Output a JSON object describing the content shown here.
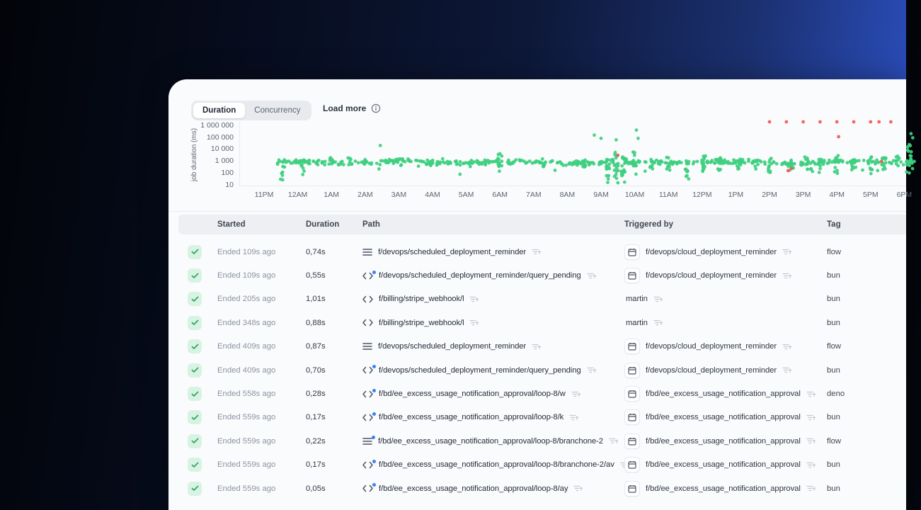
{
  "panel": {
    "tabs": [
      {
        "label": "Duration",
        "active": true
      },
      {
        "label": "Concurrency",
        "active": false
      }
    ],
    "load_more": {
      "label": "Load more"
    },
    "chart_data": {
      "type": "scatter",
      "title": "",
      "xlabel": "",
      "ylabel": "job duration (ms)",
      "y_scale": "log",
      "grid": false,
      "legend": "none",
      "y_ticks": [
        {
          "label": "1 000 000",
          "value": 6
        },
        {
          "label": "100 000",
          "value": 5
        },
        {
          "label": "10 000",
          "value": 4
        },
        {
          "label": "1 000",
          "value": 3
        },
        {
          "label": "100",
          "value": 2
        },
        {
          "label": "10",
          "value": 1
        }
      ],
      "x_ticks": [
        "11PM",
        "12AM",
        "1AM",
        "2AM",
        "3AM",
        "4AM",
        "5AM",
        "6AM",
        "7AM",
        "8AM",
        "9AM",
        "10AM",
        "11AM",
        "12PM",
        "1PM",
        "2PM",
        "3PM",
        "4PM",
        "5PM",
        "6PM"
      ],
      "x_unit": "hours since 11PM",
      "colors": {
        "ok": "#3ecf80",
        "error": "#f15b55"
      },
      "band": [
        {
          "t0": 0.4,
          "t1": 19.3,
          "n": 500,
          "log_mean": 2.88,
          "log_sd": 0.15
        }
      ],
      "spikes": [
        {
          "t": 0.55,
          "n": 5,
          "log_min": 1.3,
          "log_max": 2.9
        },
        {
          "t": 1.15,
          "n": 4,
          "log_min": 1.8,
          "log_max": 2.95
        },
        {
          "t": 2.0,
          "n": 8,
          "log_min": 2.5,
          "log_max": 3.3
        },
        {
          "t": 2.55,
          "n": 6,
          "log_min": 2.6,
          "log_max": 3.25
        },
        {
          "t": 3.0,
          "n": 6,
          "log_min": 2.5,
          "log_max": 3.2
        },
        {
          "t": 4.1,
          "n": 6,
          "log_min": 2.6,
          "log_max": 3.2
        },
        {
          "t": 5.0,
          "n": 5,
          "log_min": 2.6,
          "log_max": 3.1
        },
        {
          "t": 6.1,
          "n": 5,
          "log_min": 2.5,
          "log_max": 3.1
        },
        {
          "t": 7.0,
          "n": 11,
          "log_min": 2.0,
          "log_max": 3.6
        },
        {
          "t": 8.3,
          "n": 6,
          "log_min": 2.5,
          "log_max": 3.2
        },
        {
          "t": 9.5,
          "n": 7,
          "log_min": 2.3,
          "log_max": 3.15
        },
        {
          "t": 10.2,
          "n": 14,
          "log_min": 1.2,
          "log_max": 3.3
        },
        {
          "t": 10.45,
          "n": 16,
          "log_min": 1.2,
          "log_max": 3.8
        },
        {
          "t": 10.65,
          "n": 14,
          "log_min": 1.3,
          "log_max": 3.4
        },
        {
          "t": 11.0,
          "n": 10,
          "log_min": 1.7,
          "log_max": 3.9
        },
        {
          "t": 11.5,
          "n": 6,
          "log_min": 2.3,
          "log_max": 3.2
        },
        {
          "t": 12.0,
          "n": 8,
          "log_min": 2.2,
          "log_max": 3.3
        },
        {
          "t": 12.55,
          "n": 10,
          "log_min": 1.5,
          "log_max": 3.05
        },
        {
          "t": 13.05,
          "n": 10,
          "log_min": 2.0,
          "log_max": 3.5
        },
        {
          "t": 13.5,
          "n": 8,
          "log_min": 2.2,
          "log_max": 3.4
        },
        {
          "t": 14.1,
          "n": 8,
          "log_min": 2.3,
          "log_max": 3.5
        },
        {
          "t": 14.6,
          "n": 6,
          "log_min": 2.2,
          "log_max": 3.2
        },
        {
          "t": 15.0,
          "n": 10,
          "log_min": 2.0,
          "log_max": 3.4
        },
        {
          "t": 15.6,
          "n": 8,
          "log_min": 1.9,
          "log_max": 3.2
        },
        {
          "t": 16.1,
          "n": 8,
          "log_min": 2.2,
          "log_max": 3.4
        },
        {
          "t": 16.5,
          "n": 8,
          "log_min": 1.8,
          "log_max": 3.3
        },
        {
          "t": 17.0,
          "n": 10,
          "log_min": 1.9,
          "log_max": 3.5
        },
        {
          "t": 17.5,
          "n": 8,
          "log_min": 2.0,
          "log_max": 3.3
        },
        {
          "t": 18.0,
          "n": 10,
          "log_min": 1.8,
          "log_max": 3.5
        },
        {
          "t": 18.4,
          "n": 8,
          "log_min": 2.0,
          "log_max": 3.3
        },
        {
          "t": 18.8,
          "n": 8,
          "log_min": 1.6,
          "log_max": 3.4
        },
        {
          "t": 19.15,
          "n": 12,
          "log_min": 2.2,
          "log_max": 4.6
        }
      ],
      "outliers_ok": [
        [
          0.52,
          90
        ],
        [
          0.55,
          25
        ],
        [
          1.15,
          70
        ],
        [
          3.45,
          20000
        ],
        [
          5.3,
          1500
        ],
        [
          7.0,
          4000
        ],
        [
          9.8,
          150000
        ],
        [
          10.0,
          80000
        ],
        [
          10.2,
          15
        ],
        [
          10.45,
          60000
        ],
        [
          10.5,
          14
        ],
        [
          10.7,
          16
        ],
        [
          11.05,
          400000
        ],
        [
          11.1,
          80000
        ],
        [
          12.6,
          30
        ],
        [
          13.1,
          2600
        ],
        [
          19.2,
          200000
        ],
        [
          19.25,
          90000
        ]
      ],
      "points_error": [
        [
          10.5,
          3000
        ],
        [
          15.0,
          2000000
        ],
        [
          15.5,
          2000000
        ],
        [
          15.55,
          150
        ],
        [
          15.65,
          220
        ],
        [
          16.0,
          2000000
        ],
        [
          16.5,
          2000000
        ],
        [
          17.0,
          2000000
        ],
        [
          17.05,
          110000
        ],
        [
          17.5,
          2000000
        ],
        [
          18.0,
          2000000
        ],
        [
          18.25,
          2000000
        ],
        [
          18.32,
          900
        ],
        [
          18.6,
          2000000
        ]
      ]
    },
    "table": {
      "columns": [
        "Started",
        "Duration",
        "Path",
        "Triggered by",
        "Tag"
      ],
      "rows": [
        {
          "status": "success",
          "started": "Ended 109s ago",
          "duration": "0,74s",
          "path_icon": "flow",
          "path_dot": false,
          "path": "f/devops/scheduled_deployment_reminder",
          "trig_icon": "calendar",
          "triggered": "f/devops/cloud_deployment_reminder",
          "tag": "flow"
        },
        {
          "status": "success",
          "started": "Ended 109s ago",
          "duration": "0,55s",
          "path_icon": "script",
          "path_dot": true,
          "path": "f/devops/scheduled_deployment_reminder/query_pending",
          "trig_icon": "calendar",
          "triggered": "f/devops/cloud_deployment_reminder",
          "tag": "bun"
        },
        {
          "status": "success",
          "started": "Ended 205s ago",
          "duration": "1,01s",
          "path_icon": "script",
          "path_dot": false,
          "path": "f/billing/stripe_webhook/l",
          "trig_icon": null,
          "triggered": "martin",
          "tag": "bun"
        },
        {
          "status": "success",
          "started": "Ended 348s ago",
          "duration": "0,88s",
          "path_icon": "script",
          "path_dot": false,
          "path": "f/billing/stripe_webhook/l",
          "trig_icon": null,
          "triggered": "martin",
          "tag": "bun"
        },
        {
          "status": "success",
          "started": "Ended 409s ago",
          "duration": "0,87s",
          "path_icon": "flow",
          "path_dot": false,
          "path": "f/devops/scheduled_deployment_reminder",
          "trig_icon": "calendar",
          "triggered": "f/devops/cloud_deployment_reminder",
          "tag": "flow"
        },
        {
          "status": "success",
          "started": "Ended 409s ago",
          "duration": "0,70s",
          "path_icon": "script",
          "path_dot": true,
          "path": "f/devops/scheduled_deployment_reminder/query_pending",
          "trig_icon": "calendar",
          "triggered": "f/devops/cloud_deployment_reminder",
          "tag": "bun"
        },
        {
          "status": "success",
          "started": "Ended 558s ago",
          "duration": "0,28s",
          "path_icon": "script",
          "path_dot": true,
          "path": "f/bd/ee_excess_usage_notification_approval/loop-8/w",
          "trig_icon": "calendar",
          "triggered": "f/bd/ee_excess_usage_notification_approval",
          "tag": "deno"
        },
        {
          "status": "success",
          "started": "Ended 559s ago",
          "duration": "0,17s",
          "path_icon": "script",
          "path_dot": true,
          "path": "f/bd/ee_excess_usage_notification_approval/loop-8/k",
          "trig_icon": "calendar",
          "triggered": "f/bd/ee_excess_usage_notification_approval",
          "tag": "bun"
        },
        {
          "status": "success",
          "started": "Ended 559s ago",
          "duration": "0,22s",
          "path_icon": "flow",
          "path_dot": true,
          "path": "f/bd/ee_excess_usage_notification_approval/loop-8/branchone-2",
          "trig_icon": "calendar",
          "triggered": "f/bd/ee_excess_usage_notification_approval",
          "tag": "flow"
        },
        {
          "status": "success",
          "started": "Ended 559s ago",
          "duration": "0,17s",
          "path_icon": "script",
          "path_dot": true,
          "path": "f/bd/ee_excess_usage_notification_approval/loop-8/branchone-2/av",
          "trig_icon": "calendar",
          "triggered": "f/bd/ee_excess_usage_notification_approval",
          "tag": "bun"
        },
        {
          "status": "success",
          "started": "Ended 559s ago",
          "duration": "0,05s",
          "path_icon": "script",
          "path_dot": true,
          "path": "f/bd/ee_excess_usage_notification_approval/loop-8/ay",
          "trig_icon": "calendar",
          "triggered": "f/bd/ee_excess_usage_notification_approval",
          "tag": "bun"
        }
      ]
    }
  }
}
